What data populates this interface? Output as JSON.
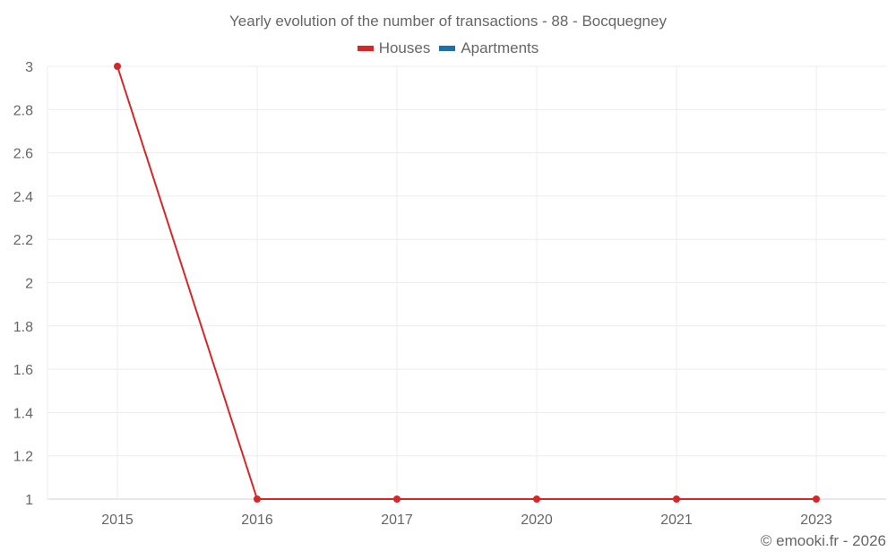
{
  "chart": {
    "title": "Yearly evolution of the number of transactions - 88 - Bocquegney",
    "legend": [
      {
        "label": "Houses",
        "color": "#d62728"
      },
      {
        "label": "Apartments",
        "color": "#1f6fa8"
      }
    ],
    "credit": "© emooki.fr - 2026"
  },
  "chart_data": {
    "type": "line",
    "title": "Yearly evolution of the number of transactions - 88 - Bocquegney",
    "categories": [
      "2015",
      "2016",
      "2017",
      "2020",
      "2021",
      "2023"
    ],
    "series": [
      {
        "name": "Houses",
        "color": "#d62728",
        "values": [
          3,
          1,
          1,
          1,
          1,
          1
        ]
      },
      {
        "name": "Apartments",
        "color": "#1f6fa8",
        "values": []
      }
    ],
    "xlabel": "",
    "ylabel": "",
    "ylim": [
      1,
      3
    ],
    "yticks": [
      "3",
      "2.8",
      "2.6",
      "2.4",
      "2.2",
      "2",
      "1.8",
      "1.6",
      "1.4",
      "1.2",
      "1"
    ],
    "grid": true,
    "legend_position": "top"
  }
}
